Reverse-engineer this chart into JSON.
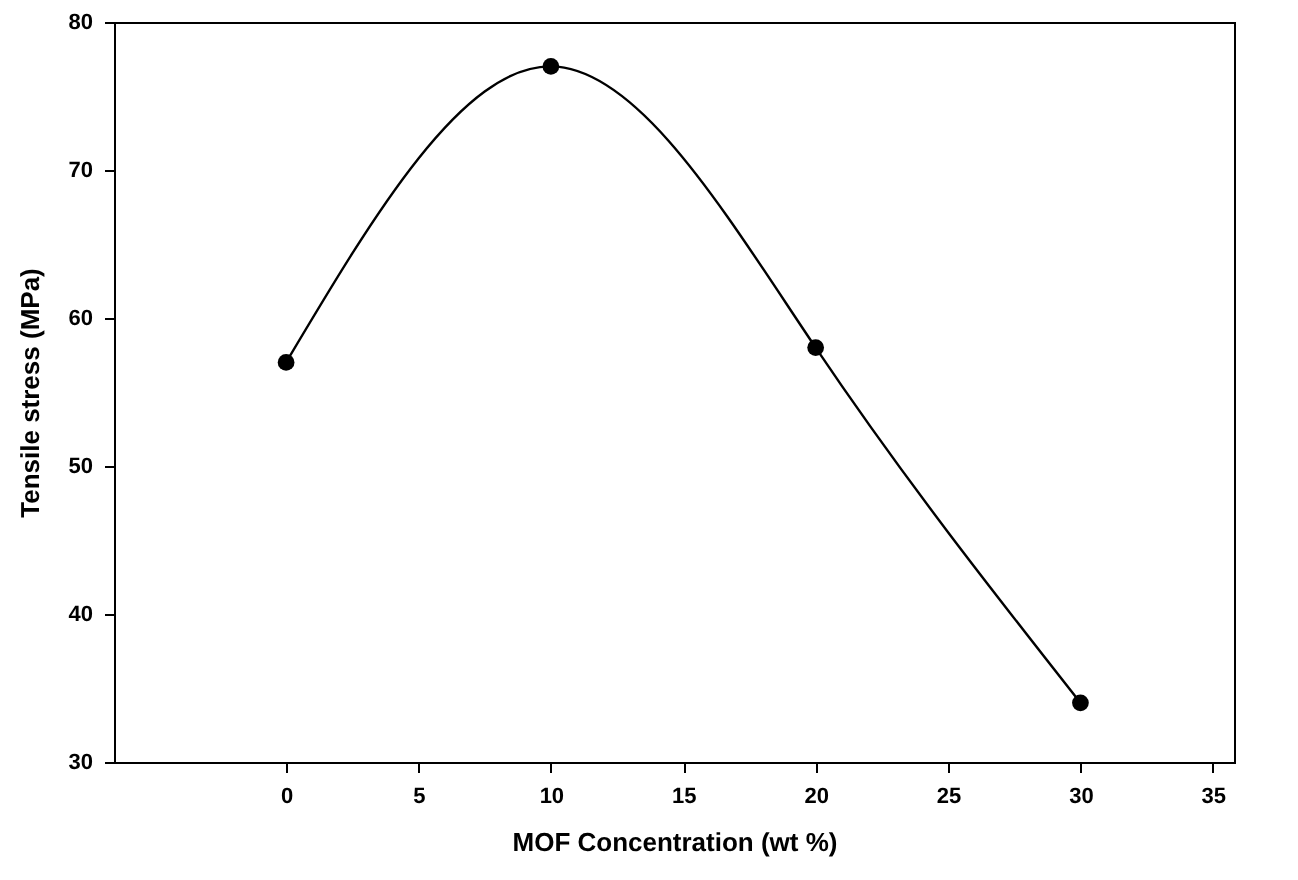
{
  "chart_data": {
    "type": "line",
    "xlabel": "MOF Concentration (wt %)",
    "ylabel": "Tensile stress (MPa)",
    "x": [
      0,
      10,
      20,
      30
    ],
    "series": [
      {
        "color": "#000000",
        "values": [
          57,
          77,
          58,
          34
        ]
      }
    ],
    "xlim": [
      -6.5,
      35.8
    ],
    "xticks": [
      0,
      5,
      10,
      15,
      20,
      25,
      30,
      35
    ],
    "ylim": [
      30,
      80
    ],
    "yticks": [
      30,
      40,
      50,
      60,
      70,
      80
    ],
    "grid": false,
    "legend": false,
    "marker": "circle",
    "line_style": "solid"
  }
}
